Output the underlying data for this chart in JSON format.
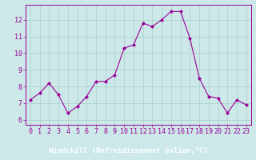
{
  "x": [
    0,
    1,
    2,
    3,
    4,
    5,
    6,
    7,
    8,
    9,
    10,
    11,
    12,
    13,
    14,
    15,
    16,
    17,
    18,
    19,
    20,
    21,
    22,
    23
  ],
  "y": [
    7.2,
    7.6,
    8.2,
    7.5,
    6.4,
    6.8,
    7.4,
    8.3,
    8.3,
    8.7,
    10.3,
    10.5,
    11.8,
    11.6,
    12.0,
    12.5,
    12.5,
    10.9,
    8.5,
    7.4,
    7.3,
    6.4,
    7.2,
    6.9
  ],
  "line_color": "#990099",
  "marker": "D",
  "marker_size": 2,
  "bg_color": "#cce8e8",
  "grid_color": "#aacccc",
  "xlabel": "Windchill (Refroidissement éolien,°C)",
  "ylabel_ticks": [
    6,
    7,
    8,
    9,
    10,
    11,
    12
  ],
  "xlim": [
    -0.5,
    23.5
  ],
  "ylim": [
    5.7,
    12.9
  ],
  "line_color_hex": "#990099",
  "tick_color": "#990099",
  "xlabel_bg": "#660066",
  "xlabel_fg": "#ffffff",
  "label_fontsize": 6.5,
  "tick_fontsize": 6.0
}
